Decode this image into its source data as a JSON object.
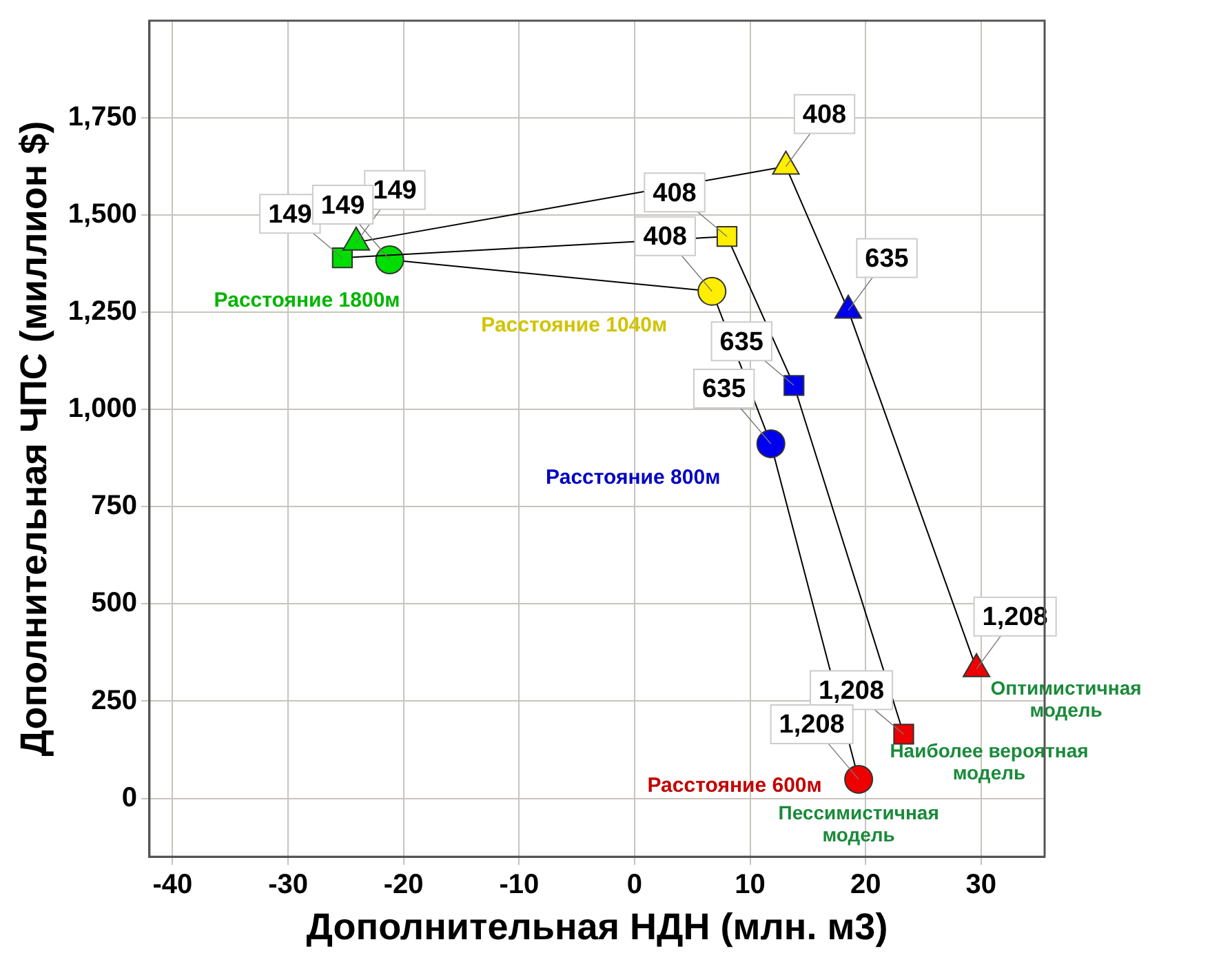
{
  "chart_data": {
    "type": "scatter",
    "xlabel": "Дополнительная НДН (млн. м3)",
    "ylabel": "Дополнительная ЧПС (миллион $)",
    "xlim": [
      -42,
      35.5
    ],
    "xticks": [
      -40,
      -30,
      -20,
      -10,
      0,
      10,
      20,
      30
    ],
    "ylim": [
      -150,
      2000
    ],
    "yticks": [
      0,
      250,
      500,
      750,
      {
        "value": 1000,
        "label": "1,000"
      },
      {
        "value": 1250,
        "label": "1,250"
      },
      {
        "value": 1500,
        "label": "1,500"
      },
      {
        "value": 1750,
        "label": "1,750"
      }
    ],
    "grid": true,
    "legend": false,
    "line_style": "solid",
    "series": [
      {
        "name": "Оптимистичная модель",
        "type": "line",
        "marker": "triangle",
        "color": "#000000",
        "colors": [
          "#00dd00",
          "#ffee00",
          "#0000ee",
          "#ee0000"
        ],
        "x": [
          -24.1,
          13.1,
          18.5,
          29.6
        ],
        "values": [
          1430,
          1625,
          1255,
          333
        ]
      },
      {
        "name": "Наиболее вероятная модель",
        "type": "line",
        "marker": "square",
        "color": "#000000",
        "colors": [
          "#00dd00",
          "#ffee00",
          "#0000ee",
          "#ee0000"
        ],
        "x": [
          -25.3,
          8.0,
          13.8,
          23.3
        ],
        "values": [
          1390,
          1445,
          1062,
          165
        ]
      },
      {
        "name": "Пессимистичная модель",
        "type": "line",
        "marker": "circle",
        "color": "#000000",
        "colors": [
          "#00dd00",
          "#ffee00",
          "#0000ee",
          "#ee0000"
        ],
        "x": [
          -21.2,
          6.7,
          11.8,
          19.4
        ],
        "values": [
          1385,
          1304,
          912,
          49
        ]
      }
    ],
    "annotations": [
      "Расстояние 1800м",
      "Расстояние 1040м",
      "Расстояние 800м",
      "Расстояние 600м",
      {
        "text": "149",
        "x": -24.1,
        "y": 1430
      },
      {
        "text": "408",
        "x": 13.1,
        "y": 1625
      },
      {
        "text": "635",
        "x": 18.5,
        "y": 1255
      },
      {
        "text": "1,208",
        "x": 29.6,
        "y": 333
      },
      {
        "text": "149",
        "x": -25.3,
        "y": 1390
      },
      {
        "text": "408",
        "x": 8.0,
        "y": 1445
      },
      {
        "text": "635",
        "x": 13.8,
        "y": 1062
      },
      {
        "text": "1,208",
        "x": 23.3,
        "y": 165
      },
      {
        "text": "149",
        "x": -21.2,
        "y": 1385
      },
      {
        "text": "408",
        "x": 6.7,
        "y": 1304
      },
      {
        "text": "635",
        "x": 11.8,
        "y": 912
      },
      {
        "text": "1,208",
        "x": 19.4,
        "y": 49
      }
    ]
  }
}
